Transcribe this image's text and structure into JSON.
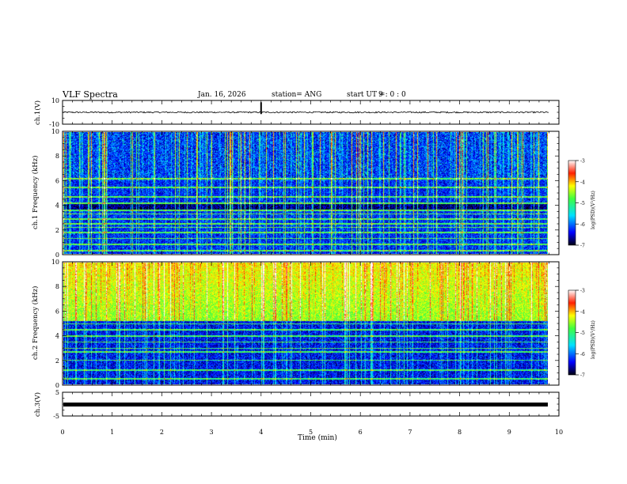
{
  "header": {
    "title": "VLF Spectra",
    "date": "Jan. 16, 2026",
    "station": "station= ANG",
    "start_label": "start UT =",
    "start_value": "9 : 0 : 0"
  },
  "chart_data": [
    {
      "type": "line",
      "panel": "ch1-waveform",
      "ylabel": "ch.1(V)",
      "ylim": [
        -10,
        10
      ],
      "yticks": [
        10,
        -10
      ],
      "xlim": [
        0,
        10
      ],
      "data_extent_min": [
        0,
        9.8
      ],
      "baseline_v": 0,
      "noise_amplitude_v": 0.6,
      "spike": {
        "t_min": 4.0,
        "min_v": -1.5,
        "max_v": 8.5
      }
    },
    {
      "type": "heatmap",
      "panel": "ch1-spectrogram",
      "ylabel": "ch.1 Frequency (kHz)",
      "ylim": [
        0,
        10
      ],
      "yticks": [
        0,
        2,
        4,
        6,
        8,
        10
      ],
      "xlim": [
        0,
        10
      ],
      "data_extent_min": [
        0,
        9.8
      ],
      "colorbar": {
        "label": "log(PSD)(V²/Hz)",
        "range": [
          -7,
          -3
        ],
        "ticks": [
          -3,
          -4,
          -5,
          -6,
          -7
        ]
      },
      "background_level": -6.3,
      "harmonic_lines_khz": [
        0.3,
        0.8,
        1.3,
        1.8,
        2.2,
        2.5,
        2.9,
        3.3,
        3.6,
        4.2,
        4.7,
        5.5,
        6.2
      ],
      "dark_band_khz": [
        3.7,
        4.1
      ]
    },
    {
      "type": "heatmap",
      "panel": "ch2-spectrogram",
      "ylabel": "ch.2 Frequency (kHz)",
      "ylim": [
        0,
        10
      ],
      "yticks": [
        0,
        2,
        4,
        6,
        8,
        10
      ],
      "xlim": [
        0,
        10
      ],
      "data_extent_min": [
        0,
        9.8
      ],
      "colorbar": {
        "label": "log(PSD)(V²/Hz)",
        "range": [
          -7,
          -3
        ],
        "ticks": [
          -3,
          -4,
          -5,
          -6,
          -7
        ]
      },
      "upper_band_level": -4.6,
      "upper_band_start_khz": 5.2,
      "harmonic_lines_khz": [
        0.5,
        1.2,
        2.0,
        2.7,
        3.0,
        3.5,
        4.0,
        4.5,
        5.0
      ]
    },
    {
      "type": "line",
      "panel": "ch3-waveform",
      "ylabel": "ch.3(V)",
      "ylim": [
        -5,
        5
      ],
      "yticks": [
        5,
        -5
      ],
      "xlim": [
        0,
        10
      ],
      "data_extent_min": [
        0,
        9.8
      ],
      "level_v": 0
    }
  ],
  "xaxis": {
    "label": "Time (min)",
    "ticks": [
      0,
      1,
      2,
      3,
      4,
      5,
      6,
      7,
      8,
      9,
      10
    ]
  }
}
